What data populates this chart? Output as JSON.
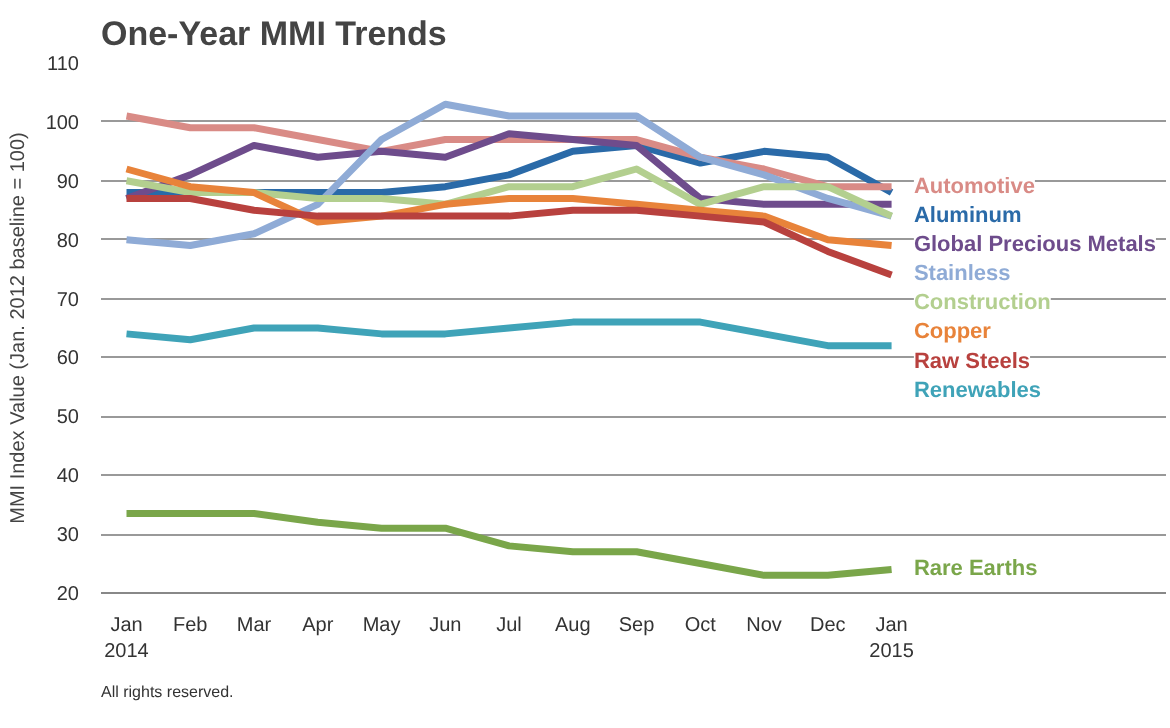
{
  "chart_data": {
    "type": "line",
    "title": "One-Year MMI Trends",
    "ylabel": "MMI Index Value (Jan. 2012 baseline = 100)",
    "categories": [
      "Jan\n2014",
      "Feb",
      "Mar",
      "Apr",
      "May",
      "Jun",
      "Jul",
      "Aug",
      "Sep",
      "Oct",
      "Nov",
      "Dec",
      "Jan\n2015"
    ],
    "ylim": [
      20,
      110
    ],
    "yticks": [
      20,
      30,
      40,
      50,
      60,
      70,
      80,
      90,
      100,
      110
    ],
    "grid": "y",
    "line_style": "solid",
    "marker": "none",
    "annotations": [
      "All rights reserved."
    ],
    "series": [
      {
        "name": "Aluminum",
        "color": "#2a6aa8",
        "values": [
          88,
          88,
          88,
          88,
          88,
          89,
          91,
          95,
          96,
          93,
          95,
          94,
          88
        ]
      },
      {
        "name": "Automotive",
        "color": "#d98b86",
        "values": [
          101,
          99,
          99,
          97,
          95,
          97,
          97,
          97,
          97,
          94,
          92,
          89,
          89
        ]
      },
      {
        "name": "Global Precious Metals",
        "color": "#6e4c8c",
        "values": [
          87,
          91,
          96,
          94,
          95,
          94,
          98,
          97,
          96,
          87,
          86,
          86,
          86
        ]
      },
      {
        "name": "Stainless",
        "color": "#8fabd6",
        "values": [
          80,
          79,
          81,
          86,
          97,
          103,
          101,
          101,
          101,
          94,
          91,
          87,
          84
        ]
      },
      {
        "name": "Construction",
        "color": "#b3cf8f",
        "values": [
          90,
          88,
          88,
          87,
          87,
          86,
          89,
          89,
          92,
          86,
          89,
          89,
          84
        ]
      },
      {
        "name": "Copper",
        "color": "#e8833a",
        "values": [
          92,
          89,
          88,
          83,
          84,
          86,
          87,
          87,
          86,
          85,
          84,
          80,
          79
        ]
      },
      {
        "name": "Raw Steels",
        "color": "#b8413e",
        "values": [
          87,
          87,
          85,
          84,
          84,
          84,
          84,
          85,
          85,
          84,
          83,
          78,
          74
        ]
      },
      {
        "name": "Renewables",
        "color": "#3fa3b8",
        "values": [
          64,
          63,
          65,
          65,
          64,
          64,
          65,
          66,
          66,
          66,
          64,
          62,
          62
        ]
      },
      {
        "name": "Rare Earths",
        "color": "#7aa64a",
        "values": [
          33.5,
          33.5,
          33.5,
          32,
          31,
          31,
          28,
          27,
          27,
          25,
          23,
          23,
          24
        ]
      }
    ]
  }
}
